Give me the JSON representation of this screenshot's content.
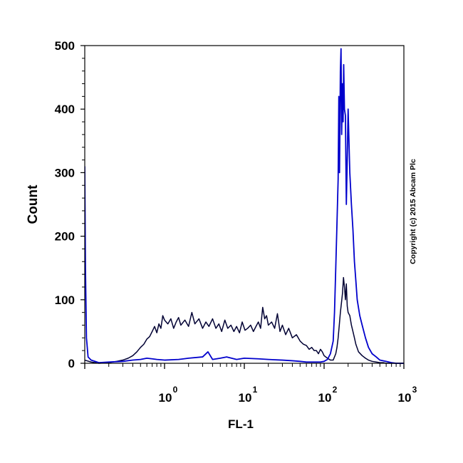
{
  "chart_data": {
    "type": "line",
    "title": "",
    "xlabel": "FL-1",
    "ylabel": "Count",
    "x_scale": "log",
    "xlim": [
      0.1,
      1000
    ],
    "ylim": [
      0,
      500
    ],
    "x_ticks": [
      {
        "base": "10",
        "exp": "0",
        "value": 1
      },
      {
        "base": "10",
        "exp": "1",
        "value": 10
      },
      {
        "base": "10",
        "exp": "2",
        "value": 100
      },
      {
        "base": "10",
        "exp": "3",
        "value": 1000
      }
    ],
    "y_ticks": [
      {
        "label": "0",
        "value": 0
      },
      {
        "label": "100",
        "value": 100
      },
      {
        "label": "200",
        "value": 200
      },
      {
        "label": "300",
        "value": 300
      },
      {
        "label": "400",
        "value": 400
      },
      {
        "label": "500",
        "value": 500
      }
    ],
    "grid": false,
    "legend": "none",
    "series": [
      {
        "color": "#000033",
        "x": [
          0.1,
          0.12,
          0.15,
          0.2,
          0.25,
          0.3,
          0.35,
          0.4,
          0.45,
          0.5,
          0.55,
          0.6,
          0.65,
          0.7,
          0.75,
          0.8,
          0.85,
          0.9,
          0.95,
          1.0,
          1.1,
          1.2,
          1.3,
          1.4,
          1.5,
          1.6,
          1.8,
          2.0,
          2.2,
          2.4,
          2.7,
          3.0,
          3.3,
          3.6,
          4.0,
          4.4,
          4.8,
          5.2,
          5.7,
          6.2,
          6.8,
          7.4,
          8.0,
          8.7,
          9.4,
          10.2,
          11.0,
          12.0,
          13.0,
          14.0,
          15.0,
          16.0,
          17.0,
          18.0,
          19.0,
          20.0,
          22.0,
          24.0,
          26.0,
          28.0,
          30.0,
          33.0,
          36.0,
          40.0,
          45.0,
          50.0,
          55.0,
          60.0,
          65.0,
          70.0,
          75.0,
          80.0,
          85.0,
          90.0,
          95.0,
          100.0,
          110.0,
          120.0,
          130.0,
          140.0,
          145.0,
          150.0,
          155.0,
          160.0,
          165.0,
          170.0,
          175.0,
          180.0,
          185.0,
          190.0,
          195.0,
          200.0,
          210.0,
          220.0,
          230.0,
          240.0,
          250.0,
          270.0,
          300.0,
          330.0,
          360.0,
          400.0,
          450.0,
          500.0,
          550.0,
          600.0,
          700.0,
          800.0,
          900.0,
          1000.0
        ],
        "y": [
          5,
          2,
          0,
          1,
          3,
          5,
          8,
          12,
          18,
          25,
          30,
          38,
          42,
          50,
          58,
          48,
          62,
          55,
          75,
          68,
          62,
          70,
          55,
          65,
          72,
          60,
          68,
          58,
          80,
          62,
          70,
          55,
          65,
          58,
          70,
          55,
          62,
          50,
          68,
          55,
          60,
          50,
          58,
          48,
          65,
          52,
          55,
          60,
          50,
          58,
          65,
          55,
          88,
          70,
          75,
          60,
          65,
          55,
          78,
          50,
          60,
          45,
          55,
          40,
          45,
          35,
          30,
          28,
          22,
          25,
          20,
          20,
          15,
          22,
          18,
          12,
          8,
          5,
          5,
          15,
          25,
          40,
          60,
          80,
          95,
          110,
          135,
          120,
          100,
          125,
          90,
          80,
          75,
          60,
          50,
          40,
          30,
          18,
          12,
          8,
          5,
          3,
          2,
          1,
          1,
          0,
          0,
          0,
          0,
          0
        ]
      },
      {
        "color": "#0000cc",
        "x": [
          0.1,
          0.102,
          0.105,
          0.11,
          0.12,
          0.15,
          0.2,
          0.3,
          0.4,
          0.5,
          0.6,
          0.7,
          0.8,
          1.0,
          1.5,
          2.0,
          3.0,
          3.5,
          4.0,
          5.0,
          6.0,
          8.0,
          10.0,
          15.0,
          20.0,
          30.0,
          40.0,
          50.0,
          60.0,
          70.0,
          80.0,
          90.0,
          100.0,
          110.0,
          120.0,
          130.0,
          135.0,
          140.0,
          145.0,
          150.0,
          153.0,
          156.0,
          160.0,
          163.0,
          166.0,
          170.0,
          173.0,
          176.0,
          180.0,
          185.0,
          190.0,
          195.0,
          200.0,
          210.0,
          220.0,
          230.0,
          240.0,
          250.0,
          260.0,
          280.0,
          300.0,
          330.0,
          360.0,
          400.0,
          450.0,
          500.0,
          600.0,
          700.0,
          800.0,
          900.0,
          1000.0
        ],
        "y": [
          310,
          150,
          40,
          10,
          5,
          1,
          2,
          3,
          5,
          6,
          8,
          7,
          6,
          5,
          6,
          8,
          10,
          18,
          6,
          8,
          10,
          6,
          8,
          7,
          6,
          5,
          4,
          3,
          2,
          2,
          2,
          2,
          3,
          6,
          15,
          35,
          80,
          150,
          220,
          290,
          420,
          300,
          460,
          495,
          360,
          440,
          380,
          470,
          400,
          390,
          250,
          320,
          400,
          300,
          250,
          210,
          160,
          130,
          100,
          75,
          60,
          40,
          25,
          15,
          10,
          5,
          3,
          1,
          0,
          0,
          0
        ]
      }
    ],
    "annotations": [
      "Copyright (c) 2015 Abcam Plc"
    ]
  }
}
